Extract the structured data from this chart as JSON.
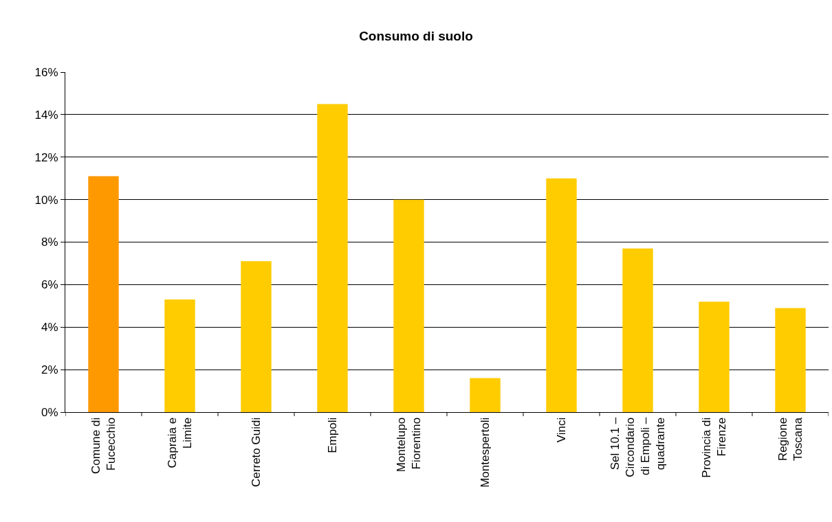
{
  "chart_data": {
    "type": "bar",
    "title": "Consumo di suolo",
    "categories": [
      "Comune di Fucecchio",
      "Capraia e Limite",
      "Cerreto Guidi",
      "Empoli",
      "Montelupo Fiorentino",
      "Montespertoli",
      "Vinci",
      "Sel 10.1 – Circondario di Empoli – quadrante",
      "Provincia di Firenze",
      "Regione Toscana"
    ],
    "values": [
      11.1,
      5.3,
      7.1,
      14.5,
      10.0,
      1.6,
      11.0,
      7.7,
      5.2,
      4.9
    ],
    "colors": [
      "#ff9900",
      "#ffcc00",
      "#ffcc00",
      "#ffcc00",
      "#ffcc00",
      "#ffcc00",
      "#ffcc00",
      "#ffcc00",
      "#ffcc00",
      "#ffcc00"
    ],
    "ylim": [
      0,
      16
    ],
    "yticks": [
      {
        "value": 0,
        "label": "0%"
      },
      {
        "value": 2,
        "label": "2%"
      },
      {
        "value": 4,
        "label": "4%"
      },
      {
        "value": 6,
        "label": "6%"
      },
      {
        "value": 8,
        "label": "8%"
      },
      {
        "value": 10,
        "label": "10%"
      },
      {
        "value": 12,
        "label": "12%"
      },
      {
        "value": 14,
        "label": "14%"
      },
      {
        "value": 16,
        "label": "16%"
      }
    ],
    "grid": "y"
  }
}
